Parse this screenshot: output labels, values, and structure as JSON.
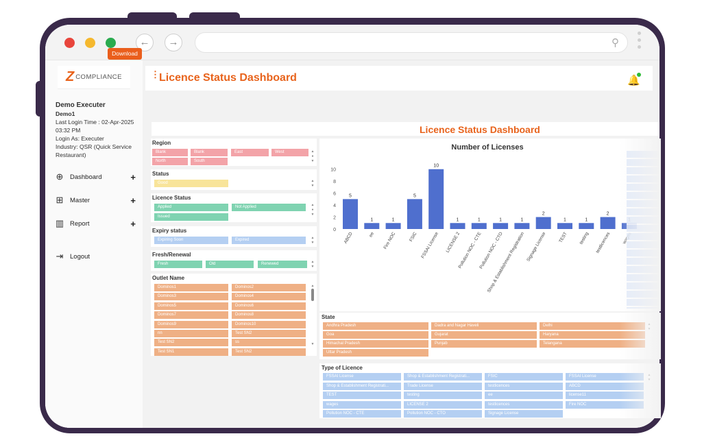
{
  "browser": {
    "url": ""
  },
  "logo": {
    "mark": "Z",
    "text": "COMPLIANCE"
  },
  "user": {
    "name": "Demo Executer",
    "username": "Demo1",
    "last_login": "Last Login Time : 02-Apr-2025 03:32 PM",
    "login_as": "Login As: Executer",
    "industry": "Industry: QSR (Quick Service Restaurant)"
  },
  "nav": [
    {
      "label": "Dashboard",
      "icon": "globe-icon",
      "plus": "+"
    },
    {
      "label": "Master",
      "icon": "grid-icon",
      "plus": "+"
    },
    {
      "label": "Report",
      "icon": "bar-chart-icon",
      "plus": "+"
    },
    {
      "label": "Logout",
      "icon": "logout-icon"
    }
  ],
  "header": {
    "title": "Licence Status Dashboard"
  },
  "download_label": "Download",
  "dashboard_title": "Licence Status Dashboard",
  "filters": {
    "region": {
      "label": "Region",
      "items": [
        "Blank",
        "Blank",
        "East",
        "West",
        "North",
        "South"
      ]
    },
    "status": {
      "label": "Status",
      "items": [
        "Good"
      ]
    },
    "licence_status": {
      "label": "Licence Status",
      "items": [
        "Applied",
        "Not Applied",
        "Issued"
      ]
    },
    "expiry": {
      "label": "Expiry status",
      "items": [
        "Expiring Soon",
        "Expired"
      ]
    },
    "fresh": {
      "label": "Fresh/Renewal",
      "items": [
        "Fresh",
        "Old",
        "Renewed"
      ]
    },
    "outlet": {
      "label": "Outlet Name",
      "items": [
        "Dominos1",
        "Dominos2",
        "Dominos3",
        "Dominos4",
        "Dominos5",
        "Dominos6",
        "Dominos7",
        "Dominos8",
        "Dominos9",
        "Dominos10",
        "nn",
        "Test SN2",
        "Test SN2",
        "ss",
        "Test SN1",
        "Test SN2"
      ]
    },
    "state": {
      "label": "State",
      "items": [
        "Andhra Pradesh",
        "Dadra and Nagar Haveli",
        "Delhi",
        "Goa",
        "Gujarat",
        "Haryana",
        "Himachal Pradesh",
        "Punjab",
        "Telangana",
        "Uttar Pradesh"
      ]
    },
    "type": {
      "label": "Type of Licence",
      "items": [
        "FSSAI License",
        "Shop & Establishment Registrati...",
        "FSIC",
        "FSSAI License",
        "Shop & Establishment Registrati...",
        "Trade License",
        "testlicences",
        "ABCD",
        "TEST",
        "testing",
        "ee",
        "license11",
        "wages",
        "LICENSE 2",
        "testlicences",
        "Fire NOC",
        "Pollution NOC - CTE",
        "Pollution NOC - CTO",
        "Signage License",
        ""
      ]
    }
  },
  "chart_data": {
    "type": "bar",
    "title": "Number of Licenses",
    "categories": [
      "ABCD",
      "ee",
      "Fire NOC",
      "FSIC",
      "FSSAI License",
      "LICENSE 2",
      "Pollution NOC - CTE",
      "Pollution NOC - CTO",
      "Shop & Establishment Registration",
      "Signage License",
      "TEST",
      "testing",
      "testlicences",
      "wages"
    ],
    "values": [
      5,
      1,
      1,
      5,
      10,
      1,
      1,
      1,
      1,
      2,
      1,
      1,
      2,
      1
    ],
    "yticks": [
      0,
      2,
      4,
      6,
      8,
      10
    ],
    "ylim": [
      0,
      11
    ],
    "color": "#4f6fce"
  }
}
